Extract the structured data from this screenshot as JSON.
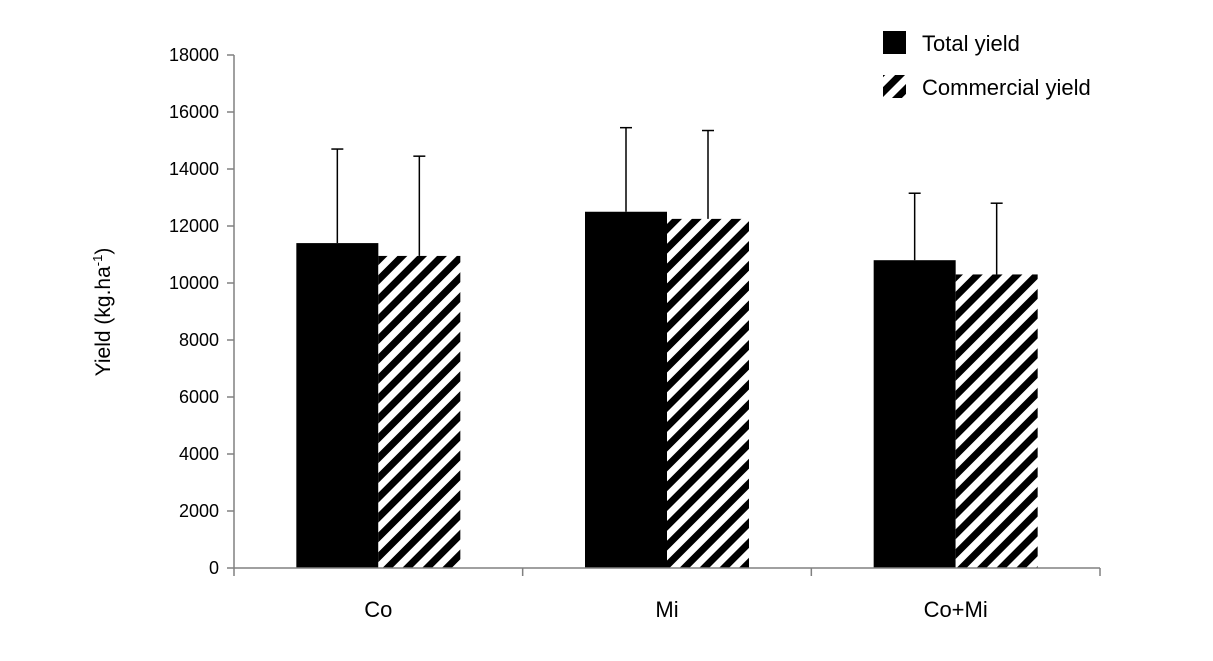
{
  "chart_data": {
    "type": "bar",
    "title": "",
    "xlabel": "",
    "ylabel": "Yield (kg.ha",
    "ylabel_superscript": "-1",
    "ylabel_suffix": ")",
    "ylim": [
      0,
      18000
    ],
    "yticks": [
      0,
      2000,
      4000,
      6000,
      8000,
      10000,
      12000,
      14000,
      16000,
      18000
    ],
    "categories": [
      "Co",
      "Mi",
      "Co+Mi"
    ],
    "series": [
      {
        "name": "Total yield",
        "fill": "solid",
        "color": "#000000",
        "values": [
          11400,
          12500,
          10800
        ],
        "error": [
          3300,
          2950,
          2350
        ]
      },
      {
        "name": "Commercial yield",
        "fill": "diagonal-stripes",
        "color": "#000000",
        "values": [
          10950,
          12250,
          10300
        ],
        "error": [
          3500,
          3100,
          2500
        ]
      }
    ],
    "legend_position": "top-right",
    "grid": false
  }
}
